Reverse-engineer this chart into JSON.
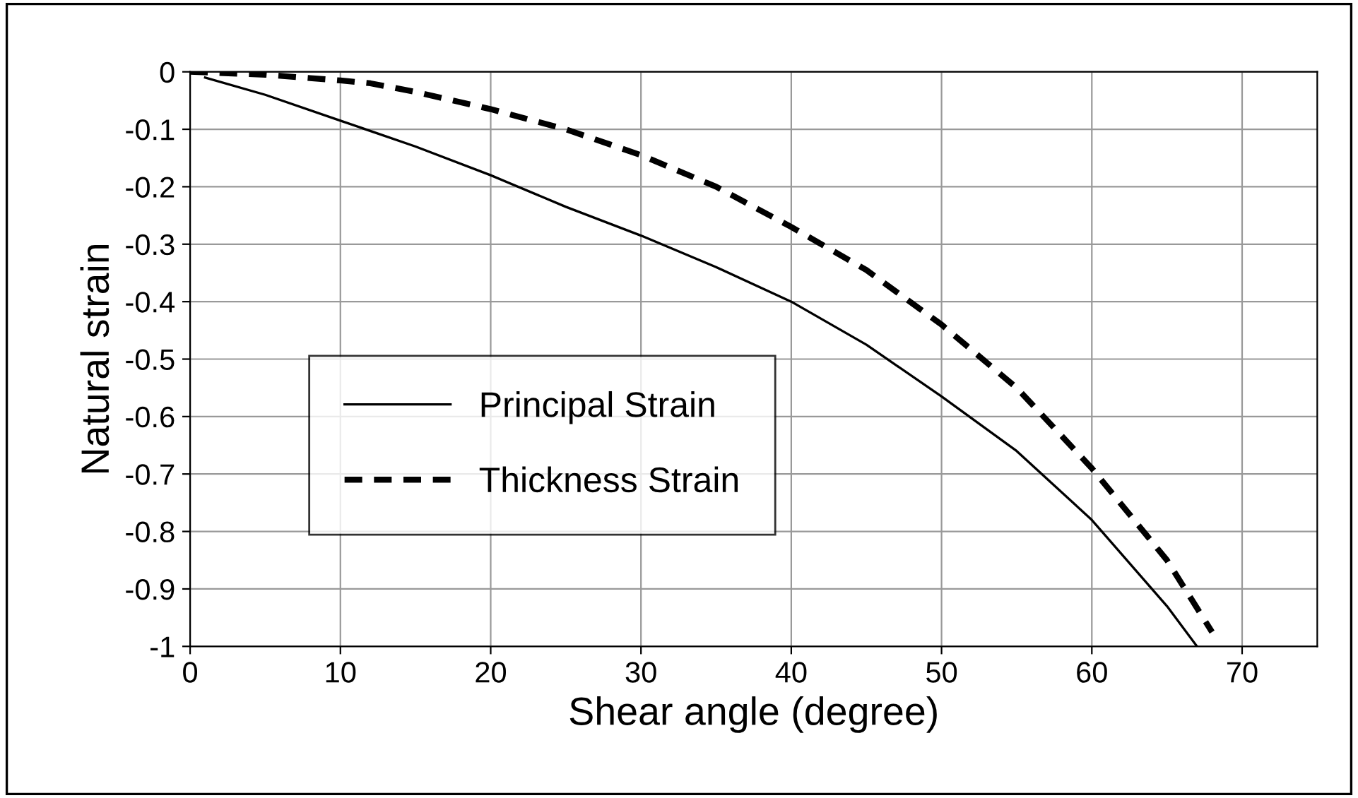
{
  "chart_data": {
    "type": "line",
    "xlabel": "Shear angle (degree)",
    "ylabel": "Natural strain",
    "xlim": [
      0,
      75
    ],
    "xticks": [
      0,
      10,
      20,
      30,
      40,
      50,
      60,
      70
    ],
    "ylim": [
      -1,
      0
    ],
    "yticks": [
      -1,
      -0.9,
      -0.8,
      -0.7,
      -0.6,
      -0.5,
      -0.4,
      -0.3,
      -0.2,
      -0.1,
      0
    ],
    "grid": true,
    "legend": "left",
    "marker": "none",
    "series": [
      {
        "name": "Principal Strain",
        "color": "#000000",
        "line_style": "solid",
        "x": [
          1,
          5,
          10,
          15,
          20,
          25,
          30,
          35,
          40,
          45,
          50,
          55,
          60,
          65,
          67
        ],
        "values": [
          -0.01,
          -0.04,
          -0.085,
          -0.13,
          -0.18,
          -0.235,
          -0.285,
          -0.34,
          -0.4,
          -0.475,
          -0.565,
          -0.66,
          -0.78,
          -0.93,
          -1.0
        ]
      },
      {
        "name": "Thickness Strain",
        "color": "#000000",
        "line_style": "dashed",
        "x": [
          0,
          5,
          10,
          12,
          15,
          20,
          25,
          30,
          35,
          40,
          45,
          50,
          55,
          60,
          65,
          68
        ],
        "values": [
          0,
          -0.005,
          -0.015,
          -0.02,
          -0.035,
          -0.065,
          -0.1,
          -0.145,
          -0.2,
          -0.27,
          -0.345,
          -0.44,
          -0.55,
          -0.69,
          -0.85,
          -0.975
        ]
      }
    ]
  }
}
